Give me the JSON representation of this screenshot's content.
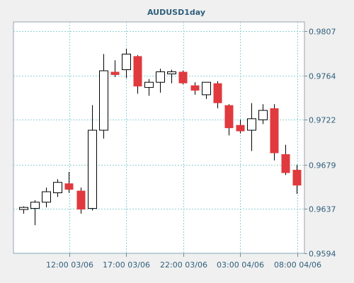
{
  "chart_data": {
    "type": "candlestick",
    "title": "AUDUSD1day",
    "xlabel": "",
    "ylabel": "",
    "ylim": [
      0.9594,
      0.9807
    ],
    "y_ticks": [
      "0.9807",
      "0.9764",
      "0.9722",
      "0.9679",
      "0.9637",
      "0.9594"
    ],
    "x_ticks": [
      {
        "label": "12:00 03/06",
        "index": 4
      },
      {
        "label": "17:00 03/06",
        "index": 9
      },
      {
        "label": "22:00 03/06",
        "index": 14
      },
      {
        "label": "03:00 04/06",
        "index": 19
      },
      {
        "label": "08:00 04/06",
        "index": 24
      }
    ],
    "grid": true,
    "up_color": "#ffffff",
    "down_color": "#e0393e",
    "candles": [
      {
        "open": 0.9636,
        "high": 0.9639,
        "low": 0.9632,
        "close": 0.9638
      },
      {
        "open": 0.9637,
        "high": 0.9645,
        "low": 0.9621,
        "close": 0.9643
      },
      {
        "open": 0.9643,
        "high": 0.9657,
        "low": 0.9638,
        "close": 0.9653
      },
      {
        "open": 0.9652,
        "high": 0.9665,
        "low": 0.9648,
        "close": 0.9662
      },
      {
        "open": 0.9661,
        "high": 0.9672,
        "low": 0.9652,
        "close": 0.9655
      },
      {
        "open": 0.9654,
        "high": 0.9657,
        "low": 0.9632,
        "close": 0.9636
      },
      {
        "open": 0.9637,
        "high": 0.9736,
        "low": 0.9635,
        "close": 0.9712
      },
      {
        "open": 0.9712,
        "high": 0.9785,
        "low": 0.9704,
        "close": 0.9769
      },
      {
        "open": 0.9768,
        "high": 0.9779,
        "low": 0.9763,
        "close": 0.9765
      },
      {
        "open": 0.977,
        "high": 0.979,
        "low": 0.9762,
        "close": 0.9785
      },
      {
        "open": 0.9783,
        "high": 0.9784,
        "low": 0.9747,
        "close": 0.9754
      },
      {
        "open": 0.9753,
        "high": 0.9761,
        "low": 0.9745,
        "close": 0.9758
      },
      {
        "open": 0.9758,
        "high": 0.9771,
        "low": 0.9748,
        "close": 0.9768
      },
      {
        "open": 0.9766,
        "high": 0.977,
        "low": 0.9757,
        "close": 0.9768
      },
      {
        "open": 0.9768,
        "high": 0.9769,
        "low": 0.9756,
        "close": 0.9757
      },
      {
        "open": 0.9755,
        "high": 0.9758,
        "low": 0.9746,
        "close": 0.975
      },
      {
        "open": 0.9746,
        "high": 0.9758,
        "low": 0.9742,
        "close": 0.9758
      },
      {
        "open": 0.9757,
        "high": 0.9759,
        "low": 0.9733,
        "close": 0.9738
      },
      {
        "open": 0.9736,
        "high": 0.9737,
        "low": 0.9707,
        "close": 0.9714
      },
      {
        "open": 0.9717,
        "high": 0.9722,
        "low": 0.9709,
        "close": 0.9711
      },
      {
        "open": 0.9712,
        "high": 0.9738,
        "low": 0.9692,
        "close": 0.9723
      },
      {
        "open": 0.9722,
        "high": 0.9737,
        "low": 0.9718,
        "close": 0.9731
      },
      {
        "open": 0.9733,
        "high": 0.9737,
        "low": 0.9683,
        "close": 0.969
      },
      {
        "open": 0.9689,
        "high": 0.9698,
        "low": 0.9669,
        "close": 0.9671
      },
      {
        "open": 0.9674,
        "high": 0.9679,
        "low": 0.9651,
        "close": 0.9659
      }
    ]
  }
}
